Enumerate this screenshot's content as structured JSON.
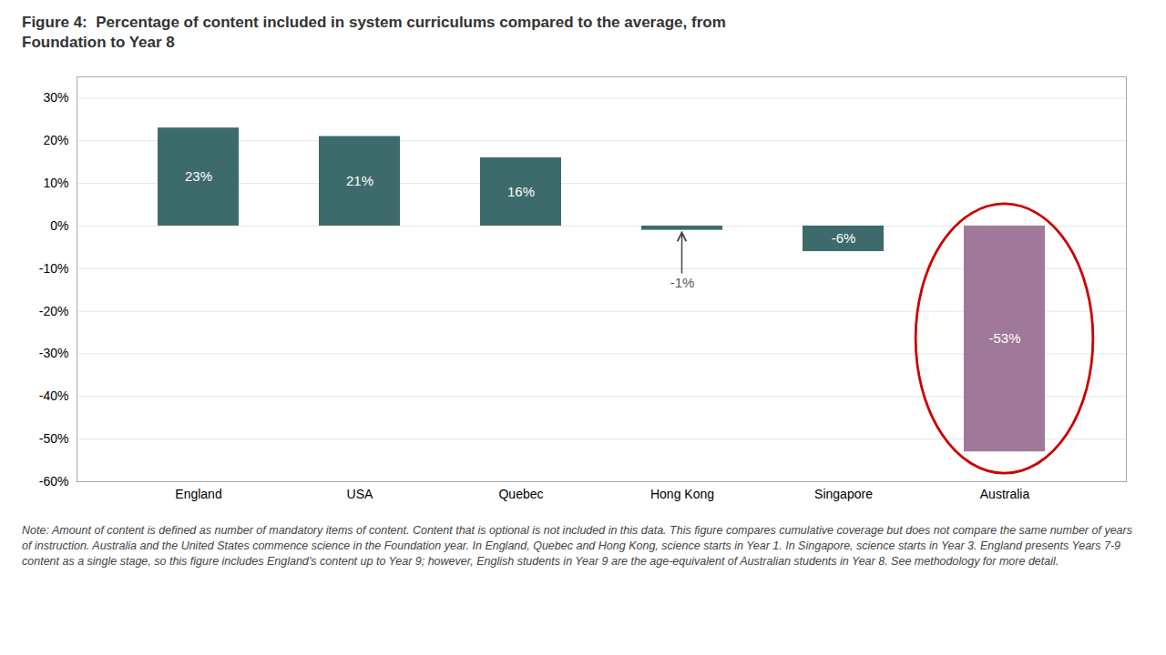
{
  "chart_data": {
    "type": "bar",
    "title": "Figure 4:  Percentage of content included in system curriculums compared to the average, from\nFoundation to Year 8",
    "note": "Note: Amount of content is defined as number of mandatory items of content. Content that is optional is not included in this data. This figure compares cumulative coverage but does not compare the same number of years of instruction. Australia and the United States commence science in the Foundation year. In England, Quebec and Hong Kong, science starts in Year 1. In Singapore, science starts in Year 3. England presents Years 7-9 content as a single stage, so this figure includes England’s content up to Year 9; however, English students in Year 9 are the age-equivalent of Australian students in Year 8. See methodology for more detail.",
    "categories": [
      "England",
      "USA",
      "Quebec",
      "Hong Kong",
      "Singapore",
      "Australia"
    ],
    "values": [
      23,
      21,
      16,
      -1,
      -6,
      -53
    ],
    "value_labels": [
      "23%",
      "21%",
      "16%",
      "-1%",
      "-6%",
      "-53%"
    ],
    "data_labels": true,
    "colors": [
      "#3d6b6b",
      "#3d6b6b",
      "#3d6b6b",
      "#3d6b6b",
      "#3d6b6b",
      "#a07899"
    ],
    "ylim": [
      -60,
      35
    ],
    "yticks": [
      {
        "value": -60,
        "label": "-60%"
      },
      {
        "value": -50,
        "label": "-50%"
      },
      {
        "value": -40,
        "label": "-40%"
      },
      {
        "value": -30,
        "label": "-30%"
      },
      {
        "value": -20,
        "label": "-20%"
      },
      {
        "value": -10,
        "label": "-10%"
      },
      {
        "value": 0,
        "label": "0%"
      },
      {
        "value": 10,
        "label": "10%"
      },
      {
        "value": 20,
        "label": "20%"
      },
      {
        "value": 30,
        "label": "30%"
      }
    ],
    "grid": true
  }
}
